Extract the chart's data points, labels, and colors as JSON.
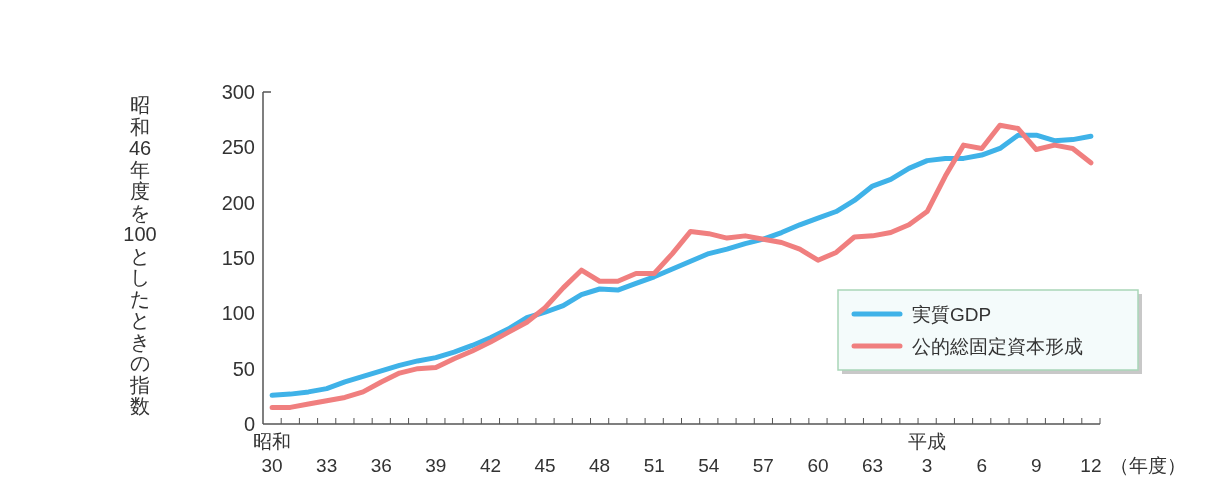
{
  "chart_data": {
    "type": "line",
    "ylabel": "昭和46年度を100としたときの指数",
    "xlabel": "（年度）",
    "categories": [
      "昭和\n30",
      null,
      null,
      "33",
      null,
      null,
      "36",
      null,
      null,
      "39",
      null,
      null,
      "42",
      null,
      null,
      "45",
      null,
      null,
      "48",
      null,
      null,
      "51",
      null,
      null,
      "54",
      null,
      null,
      "57",
      null,
      null,
      "60",
      null,
      null,
      "63",
      null,
      null,
      "平成\n3",
      null,
      null,
      "6",
      null,
      null,
      "9",
      null,
      null,
      "12"
    ],
    "series": [
      {
        "name": "実質GDP",
        "color": "#3fb2e8",
        "values": [
          26,
          27,
          29,
          32,
          38,
          43,
          48,
          53,
          57,
          60,
          65,
          71,
          78,
          86,
          96,
          101,
          107,
          117,
          122,
          121,
          127,
          133,
          140,
          147,
          154,
          158,
          163,
          167,
          173,
          180,
          186,
          192,
          202,
          215,
          221,
          231,
          238,
          240,
          240,
          243,
          249,
          261,
          261,
          256,
          257,
          260
        ]
      },
      {
        "name": "公的総固定資本形成",
        "color": "#f07f7f",
        "values": [
          15,
          15,
          18,
          21,
          24,
          29,
          38,
          46,
          50,
          51,
          59,
          66,
          74,
          83,
          92,
          105,
          123,
          139,
          129,
          129,
          136,
          136,
          154,
          174,
          172,
          168,
          170,
          167,
          164,
          158,
          148,
          155,
          169,
          170,
          173,
          180,
          192,
          224,
          252,
          249,
          270,
          267,
          248,
          252,
          249,
          236
        ]
      }
    ],
    "ylim": [
      0,
      300
    ],
    "yticks": [
      0,
      50,
      100,
      150,
      200,
      250,
      300
    ],
    "grid": false,
    "legend": "bottom right",
    "marker": "none",
    "line_style": "solid"
  }
}
